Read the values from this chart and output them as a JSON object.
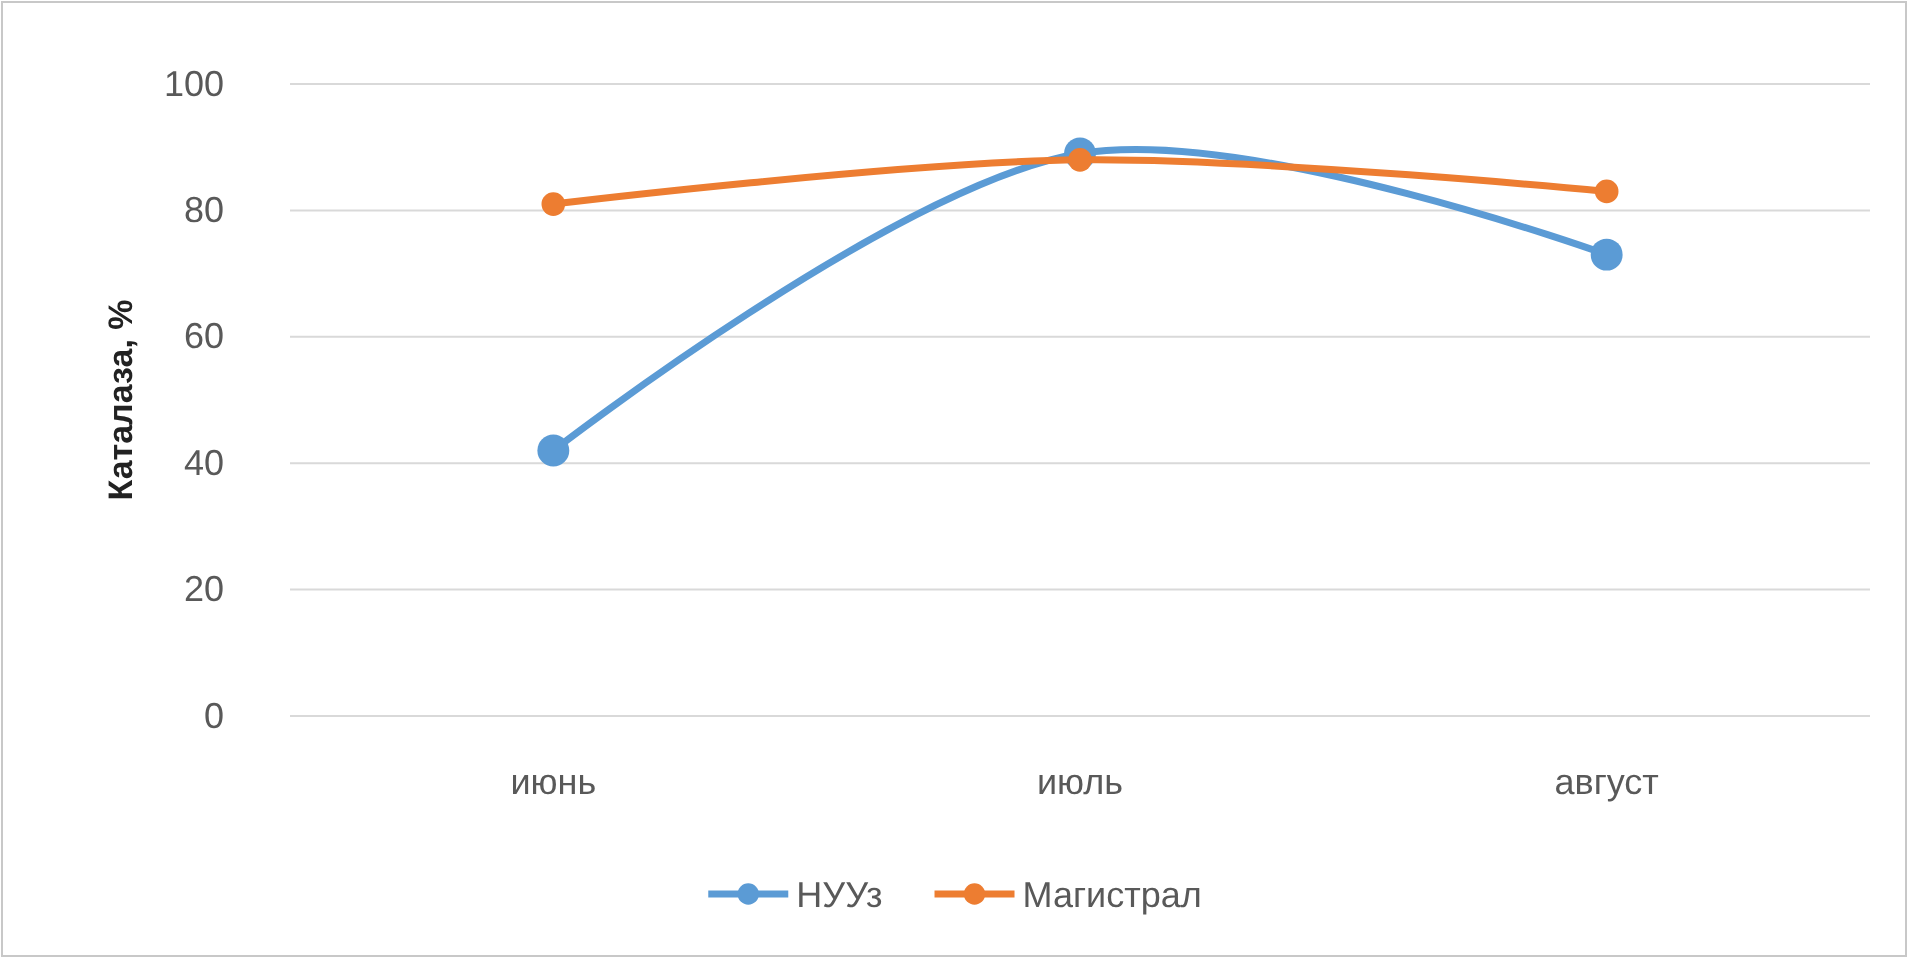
{
  "chart_data": {
    "type": "line",
    "ylabel": "Каталаза, %",
    "categories": [
      "июнь",
      "июль",
      "август"
    ],
    "series": [
      {
        "name": "НУУз",
        "color": "#5b9bd5",
        "values": [
          42,
          89,
          73
        ]
      },
      {
        "name": "Магистрал",
        "color": "#ed7d31",
        "values": [
          81,
          88,
          83
        ]
      }
    ],
    "ylim": [
      0,
      100
    ],
    "yticks": [
      0,
      20,
      40,
      60,
      80,
      100
    ],
    "grid": "y",
    "legend": "bottom",
    "marker": "circle",
    "line_style": "solid"
  }
}
